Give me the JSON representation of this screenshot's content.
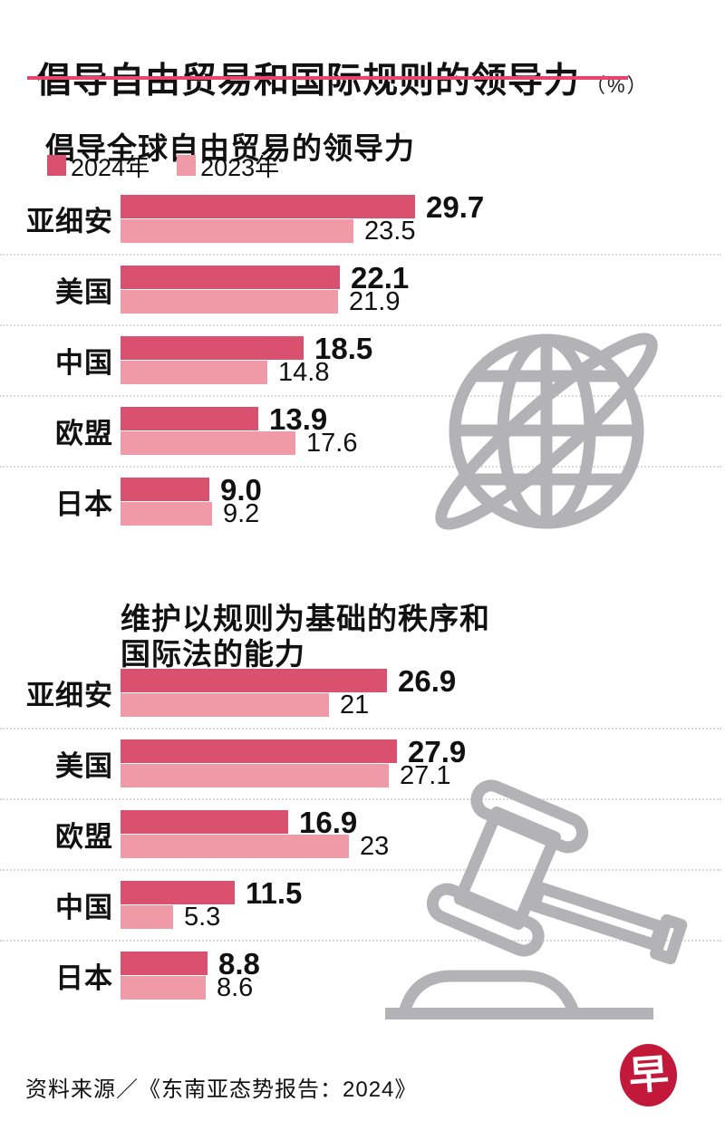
{
  "page": {
    "title": "倡导自由贸易和国际规则的领导力",
    "title_unit": "（%）",
    "source": "资料来源／《东南亚态势报告：2024》",
    "logo_char": "早"
  },
  "colors": {
    "year_2024": "#d9516f",
    "year_2023": "#ef9aa6",
    "title_underline": "#e9446b",
    "icon_gray": "#b3b3b6",
    "logo_red": "#c2183a",
    "dotted_line": "#dadada",
    "text": "#111111"
  },
  "legend": [
    {
      "label": "2024年"
    },
    {
      "label": "2023年"
    }
  ],
  "chart_data": [
    {
      "type": "bar",
      "orientation": "horizontal",
      "unit": "%",
      "title": "倡导全球自由贸易的领导力",
      "categories": [
        "亚细安",
        "美国",
        "中国",
        "欧盟",
        "日本"
      ],
      "series": [
        {
          "name": "2024年",
          "values": [
            29.7,
            22.1,
            18.5,
            13.9,
            9.0
          ],
          "labels": [
            "29.7",
            "22.1",
            "18.5",
            "13.9",
            "9.0"
          ]
        },
        {
          "name": "2023年",
          "values": [
            23.5,
            21.9,
            14.8,
            17.6,
            9.2
          ],
          "labels": [
            "23.5",
            "21.9",
            "14.8",
            "17.6",
            "9.2"
          ]
        }
      ],
      "xlim": [
        0,
        30
      ],
      "grid": false,
      "legend_position": "top-left"
    },
    {
      "type": "bar",
      "orientation": "horizontal",
      "unit": "%",
      "title": "维护以规则为基础的秩序和\n国际法的能力",
      "categories": [
        "亚细安",
        "美国",
        "欧盟",
        "中国",
        "日本"
      ],
      "series": [
        {
          "name": "2024年",
          "values": [
            26.9,
            27.9,
            16.9,
            11.5,
            8.8
          ],
          "labels": [
            "26.9",
            "27.9",
            "16.9",
            "11.5",
            "8.8"
          ]
        },
        {
          "name": "2023年",
          "values": [
            21,
            27.1,
            23,
            5.3,
            8.6
          ],
          "labels": [
            "21",
            "27.1",
            "23",
            "5.3",
            "8.6"
          ]
        }
      ],
      "xlim": [
        0,
        30
      ],
      "grid": false,
      "legend_position": "none"
    }
  ]
}
